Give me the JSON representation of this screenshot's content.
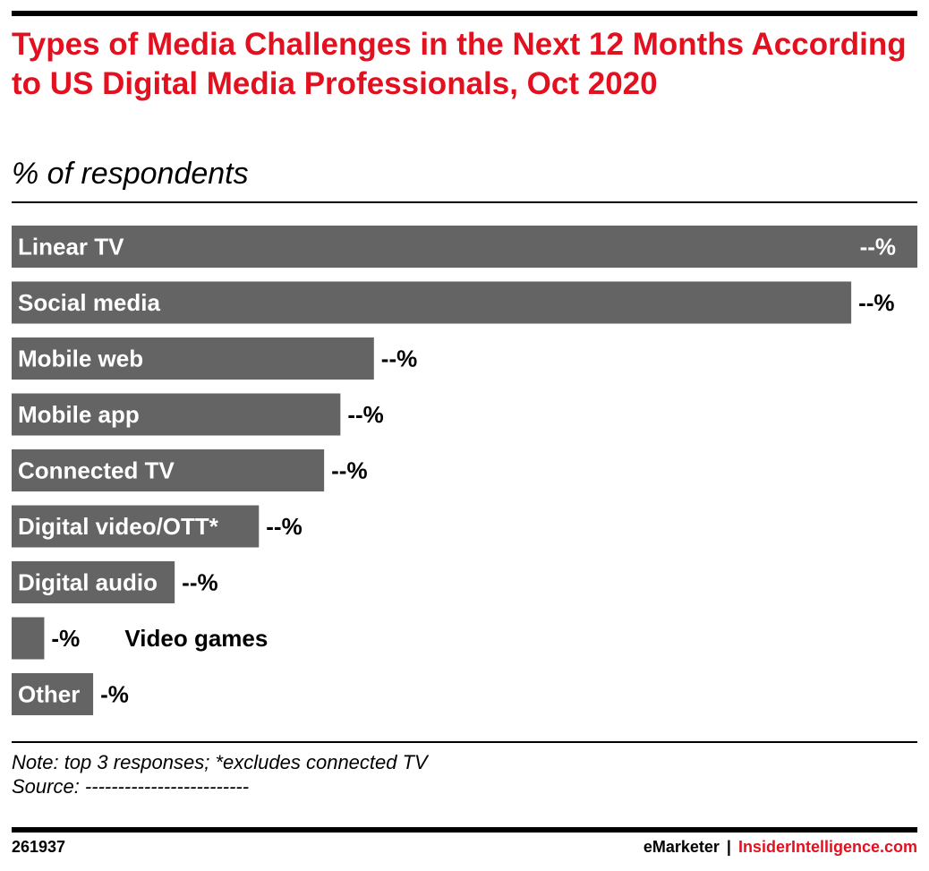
{
  "title": "Types of Media Challenges in the Next 12 Months According to US Digital Media Professionals, Oct 2020",
  "subtitle": "% of respondents",
  "note": "Note: top 3 responses; *excludes connected TV",
  "source": "Source: -------------------------",
  "footer": {
    "chart_id": "261937",
    "brand_left": "eMarketer",
    "separator": "|",
    "brand_right": "InsiderIntelligence.com"
  },
  "colors": {
    "title": "#e3101f",
    "bar": "#646464",
    "bar_label": "#ffffff",
    "value_label": "#000000"
  },
  "chart_data": {
    "type": "bar",
    "orientation": "horizontal",
    "title": "Types of Media Challenges in the Next 12 Months According to US Digital Media Professionals, Oct 2020",
    "subtitle": "% of respondents",
    "categories": [
      "Linear TV",
      "Social media",
      "Mobile web",
      "Mobile app",
      "Connected TV",
      "Digital video/OTT*",
      "Digital audio",
      "Video games",
      "Other"
    ],
    "values": [
      100,
      92.7,
      40,
      36.3,
      34.5,
      27.3,
      18,
      3.6,
      9
    ],
    "value_labels": [
      "--%",
      "--%",
      "--%",
      "--%",
      "--%",
      "--%",
      "--%",
      "-%",
      "-%"
    ],
    "xlim": [
      0,
      100
    ],
    "grid": false,
    "legend": "none"
  }
}
